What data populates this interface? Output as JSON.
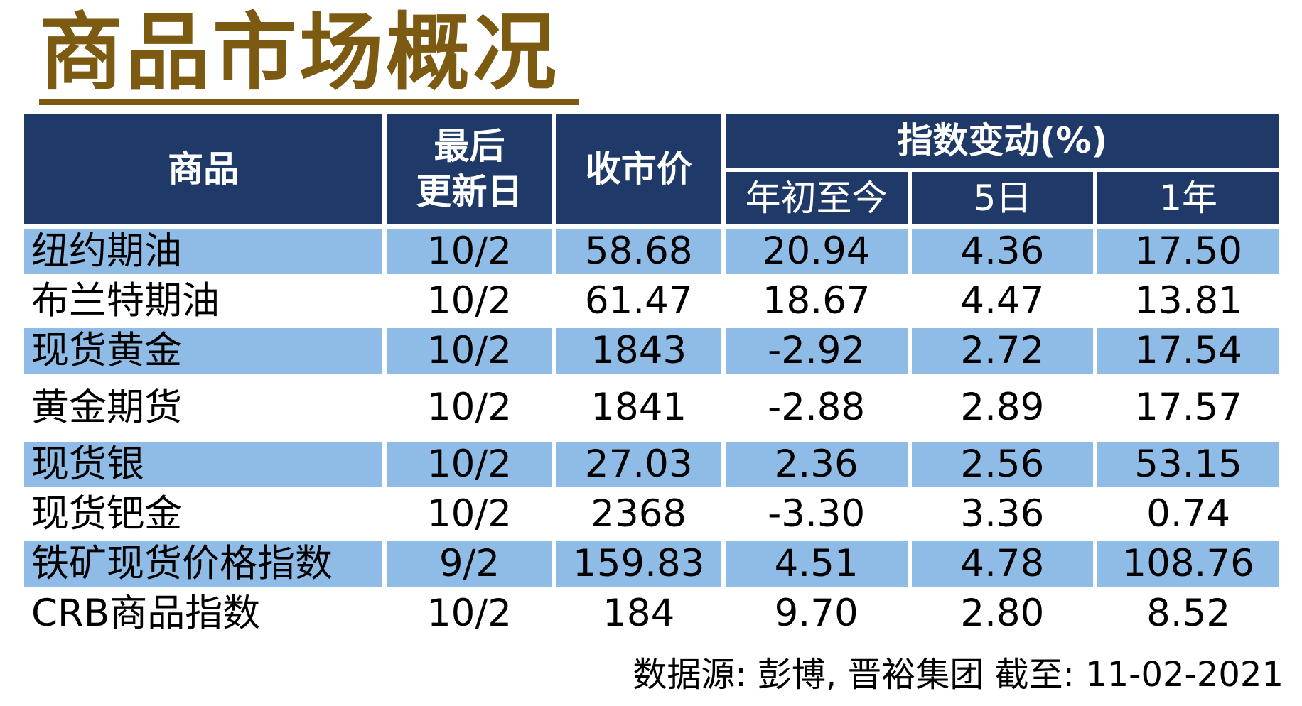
{
  "title": "商品市场概况",
  "header": {
    "commodity": "商品",
    "last_update_line1": "最后",
    "last_update_line2": "更新日",
    "close_price": "收市价",
    "index_change": "指数变动(%)",
    "ytd": "年初至今",
    "d5": "5日",
    "y1": "1年"
  },
  "rows": [
    {
      "name": "纽约期油",
      "date": "10/2",
      "price": "58.68",
      "ytd": "20.94",
      "d5": "4.36",
      "y1": "17.50"
    },
    {
      "name": "布兰特期油",
      "date": "10/2",
      "price": "61.47",
      "ytd": "18.67",
      "d5": "4.47",
      "y1": "13.81"
    },
    {
      "name": "现货黄金",
      "date": "10/2",
      "price": "1843",
      "ytd": "-2.92",
      "d5": "2.72",
      "y1": "17.54"
    },
    {
      "name": "黄金期货",
      "date": "10/2",
      "price": "1841",
      "ytd": "-2.88",
      "d5": "2.89",
      "y1": "17.57"
    },
    {
      "name": "现货银",
      "date": "10/2",
      "price": "27.03",
      "ytd": "2.36",
      "d5": "2.56",
      "y1": "53.15"
    },
    {
      "name": "现货钯金",
      "date": "10/2",
      "price": "2368",
      "ytd": "-3.30",
      "d5": "3.36",
      "y1": "0.74"
    },
    {
      "name": "铁矿现货价格指数",
      "date": "9/2",
      "price": "159.83",
      "ytd": "4.51",
      "d5": "4.78",
      "y1": "108.76"
    },
    {
      "name": "CRB商品指数",
      "date": "10/2",
      "price": "184",
      "ytd": "9.70",
      "d5": "2.80",
      "y1": "8.52"
    }
  ],
  "source": "数据源: 彭博, 晋裕集团 截至: 11-02-2021",
  "colors": {
    "title": "#7d5a12",
    "header_bg": "#1f3a68",
    "row_shade": "#8fbce6"
  }
}
